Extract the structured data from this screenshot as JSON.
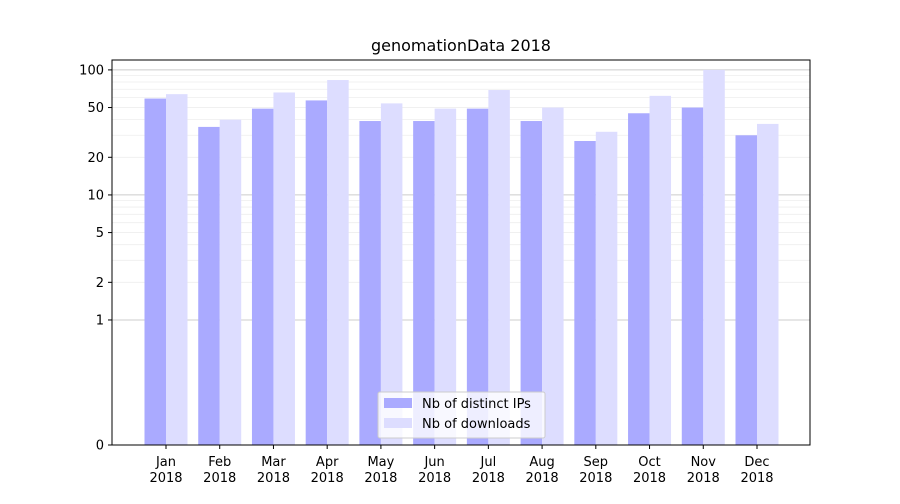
{
  "chart_data": {
    "type": "bar",
    "title": "genomationData 2018",
    "xlabel": "",
    "ylabel": "",
    "yscale": "symlog",
    "ylim": [
      0,
      120
    ],
    "yticks": [
      {
        "value": 0,
        "label": "0"
      },
      {
        "value": 1,
        "label": "1"
      },
      {
        "value": 2,
        "label": "2"
      },
      {
        "value": 5,
        "label": "5"
      },
      {
        "value": 10,
        "label": "10"
      },
      {
        "value": 20,
        "label": "20"
      },
      {
        "value": 50,
        "label": "50"
      },
      {
        "value": 100,
        "label": "100"
      }
    ],
    "categories": [
      {
        "month": "Jan",
        "year": "2018"
      },
      {
        "month": "Feb",
        "year": "2018"
      },
      {
        "month": "Mar",
        "year": "2018"
      },
      {
        "month": "Apr",
        "year": "2018"
      },
      {
        "month": "May",
        "year": "2018"
      },
      {
        "month": "Jun",
        "year": "2018"
      },
      {
        "month": "Jul",
        "year": "2018"
      },
      {
        "month": "Aug",
        "year": "2018"
      },
      {
        "month": "Sep",
        "year": "2018"
      },
      {
        "month": "Oct",
        "year": "2018"
      },
      {
        "month": "Nov",
        "year": "2018"
      },
      {
        "month": "Dec",
        "year": "2018"
      }
    ],
    "series": [
      {
        "name": "Nb of distinct IPs",
        "color": "#aaaaff",
        "values": [
          59,
          35,
          49,
          57,
          39,
          39,
          49,
          39,
          27,
          45,
          50,
          30
        ]
      },
      {
        "name": "Nb of downloads",
        "color": "#ddddff",
        "values": [
          64,
          40,
          66,
          83,
          54,
          49,
          69,
          50,
          32,
          62,
          100,
          37
        ]
      }
    ],
    "grid": true,
    "legend_position": "lower-center"
  }
}
